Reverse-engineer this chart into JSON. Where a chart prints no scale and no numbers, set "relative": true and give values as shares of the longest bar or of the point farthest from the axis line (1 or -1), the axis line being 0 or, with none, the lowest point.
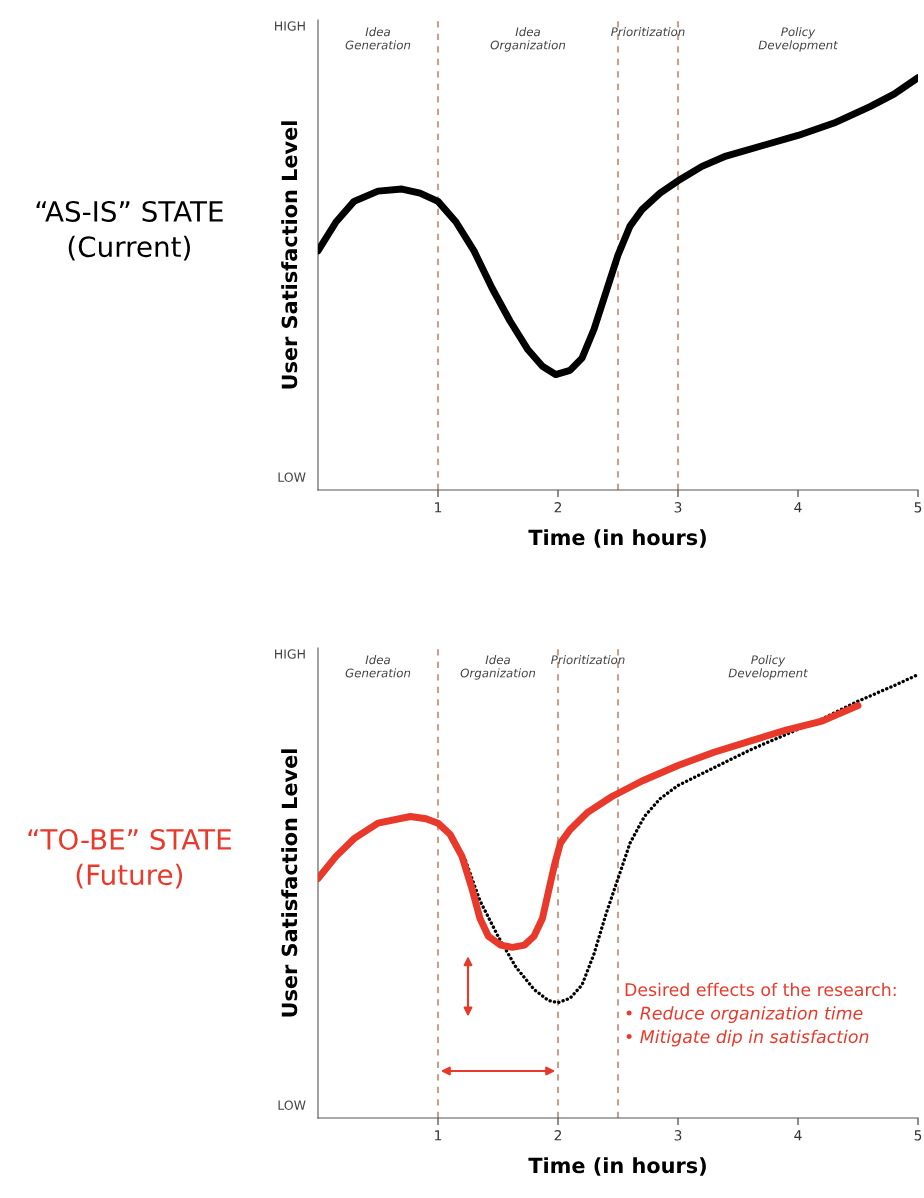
{
  "chart_data": [
    {
      "type": "line",
      "title": "“AS-IS” STATE\n(Current)",
      "xlabel": "Time (in hours)",
      "ylabel": "User Satisfaction Level",
      "relative": true,
      "xlim": [
        0,
        5
      ],
      "xticks": [
        1,
        2,
        3,
        4,
        5
      ],
      "grid": false,
      "legend": false,
      "annotations": [
        "HIGH",
        "LOW",
        "Idea\nGeneration",
        "Idea\nOrganization",
        "Prioritization",
        "Policy\nDevelopment"
      ],
      "series": [
        {
          "color": "#000000",
          "line_style": "solid",
          "x": [
            0,
            0.15,
            0.3,
            0.5,
            0.7,
            0.85,
            1,
            1.15,
            1.3,
            1.45,
            1.6,
            1.75,
            1.87,
            1.98,
            2.1,
            2.2,
            2.3,
            2.4,
            2.5,
            2.6,
            2.7,
            2.85,
            3,
            3.2,
            3.4,
            3.7,
            4,
            4.3,
            4.6,
            4.8,
            5
          ],
          "values": [
            0.58,
            0.65,
            0.7,
            0.725,
            0.73,
            0.72,
            0.7,
            0.65,
            0.58,
            0.49,
            0.41,
            0.34,
            0.3,
            0.28,
            0.29,
            0.32,
            0.39,
            0.48,
            0.57,
            0.64,
            0.68,
            0.72,
            0.75,
            0.785,
            0.81,
            0.835,
            0.86,
            0.89,
            0.93,
            0.96,
            1.0
          ]
        }
      ],
      "ref_lines": [
        {
          "axis": "x",
          "value": 1,
          "color": "#c9a08c",
          "line_style": "dashed"
        },
        {
          "axis": "x",
          "value": 2.5,
          "color": "#c9a08c",
          "line_style": "dashed"
        },
        {
          "axis": "x",
          "value": 3,
          "color": "#c9a08c",
          "line_style": "dashed"
        }
      ]
    },
    {
      "type": "line",
      "title": "“TO-BE” STATE\n(Future)",
      "xlabel": "Time (in hours)",
      "ylabel": "User Satisfaction Level",
      "relative": true,
      "xlim": [
        0,
        5
      ],
      "xticks": [
        1,
        2,
        3,
        4,
        5
      ],
      "grid": false,
      "legend": false,
      "annotations": [
        "HIGH",
        "LOW",
        "Idea\nGeneration",
        "Idea\nOrganization",
        "Prioritization",
        "Policy\nDevelopment",
        "Desired effects of the research:",
        "• Reduce organization time",
        "• Mitigate dip in satisfaction"
      ],
      "series": [
        {
          "color": "#000000",
          "line_style": "dotted",
          "x": [
            1.23,
            1.35,
            1.5,
            1.65,
            1.8,
            1.92,
            2,
            2.1,
            2.2,
            2.3,
            2.4,
            2.5,
            2.6,
            2.72,
            2.85,
            3,
            3.3,
            3.6,
            3.9,
            4.2,
            4.5,
            4.8,
            5
          ],
          "values": [
            0.58,
            0.49,
            0.41,
            0.34,
            0.29,
            0.265,
            0.26,
            0.27,
            0.3,
            0.37,
            0.46,
            0.54,
            0.62,
            0.68,
            0.72,
            0.75,
            0.79,
            0.83,
            0.865,
            0.9,
            0.94,
            0.975,
            1.0
          ]
        },
        {
          "color": "#e8392b",
          "line_style": "solid",
          "x": [
            0,
            0.15,
            0.3,
            0.5,
            0.77,
            0.9,
            1,
            1.1,
            1.2,
            1.28,
            1.35,
            1.42,
            1.52,
            1.62,
            1.72,
            1.8,
            1.87,
            1.92,
            1.97,
            2.02,
            2.1,
            2.25,
            2.45,
            2.7,
            3,
            3.3,
            3.6,
            3.9,
            4.2,
            4.5
          ],
          "values": [
            0.54,
            0.59,
            0.63,
            0.665,
            0.68,
            0.675,
            0.665,
            0.64,
            0.59,
            0.52,
            0.45,
            0.41,
            0.39,
            0.385,
            0.39,
            0.41,
            0.45,
            0.51,
            0.57,
            0.62,
            0.65,
            0.69,
            0.725,
            0.76,
            0.795,
            0.825,
            0.85,
            0.875,
            0.895,
            0.93
          ]
        }
      ],
      "ref_lines": [
        {
          "axis": "x",
          "value": 1,
          "color": "#c9a08c",
          "line_style": "dashed"
        },
        {
          "axis": "x",
          "value": 2,
          "color": "#c9a08c",
          "line_style": "dashed"
        },
        {
          "axis": "x",
          "value": 2.5,
          "color": "#c9a08c",
          "line_style": "dashed"
        }
      ]
    }
  ]
}
